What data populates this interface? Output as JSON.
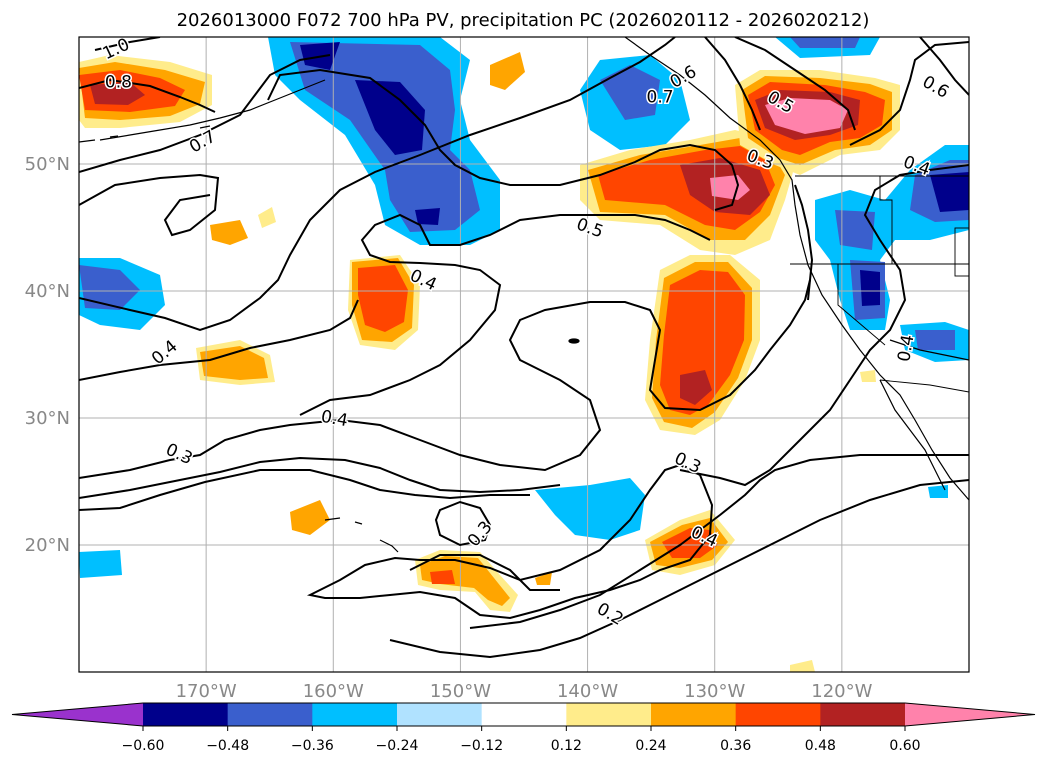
{
  "title": "2026013000 F072 700 hPa PV, precipitation PC (2026020112 - 2026020212)",
  "map": {
    "lon_range": [
      -180,
      -110
    ],
    "lat_range": [
      10,
      60
    ],
    "lon_ticks": [
      {
        "lon": -170,
        "label": "170°W"
      },
      {
        "lon": -160,
        "label": "160°W"
      },
      {
        "lon": -150,
        "label": "150°W"
      },
      {
        "lon": -140,
        "label": "140°W"
      },
      {
        "lon": -130,
        "label": "130°W"
      },
      {
        "lon": -120,
        "label": "120°W"
      }
    ],
    "lat_ticks": [
      {
        "lat": 20,
        "label": "20°N"
      },
      {
        "lat": 30,
        "label": "30°N"
      },
      {
        "lat": 40,
        "label": "40°N"
      },
      {
        "lat": 50,
        "label": "50°N"
      }
    ],
    "grid": true
  },
  "colorbar": {
    "colors": [
      "#9a32cd",
      "#00008b",
      "#3a5fcd",
      "#00bfff",
      "#b0e2ff",
      "#ffffff",
      "#ffec8b",
      "#ffa500",
      "#ff4500",
      "#b22222",
      "#ff82ab"
    ],
    "labels": [
      "−0.60",
      "−0.48",
      "−0.36",
      "−0.24",
      "−0.12",
      "0.12",
      "0.24",
      "0.36",
      "0.48",
      "0.60"
    ],
    "extend": "both"
  },
  "contour_labels": [
    {
      "text": "1.0",
      "lon": -177.1,
      "lat": 59.1,
      "rot": -25
    },
    {
      "text": "0.8",
      "lon": -176.9,
      "lat": 56.5,
      "rot": 0
    },
    {
      "text": "0.7",
      "lon": -170.3,
      "lat": 51.8,
      "rot": -30
    },
    {
      "text": "0.7",
      "lon": -134.3,
      "lat": 55.3,
      "rot": 0
    },
    {
      "text": "0.6",
      "lon": -132.5,
      "lat": 56.9,
      "rot": -30
    },
    {
      "text": "0.6",
      "lon": -112.6,
      "lat": 56.1,
      "rot": 30
    },
    {
      "text": "0.5",
      "lon": -124.8,
      "lat": 54.9,
      "rot": 30
    },
    {
      "text": "0.5",
      "lon": -139.8,
      "lat": 45.0,
      "rot": 20
    },
    {
      "text": "0.4",
      "lon": -114.1,
      "lat": 49.9,
      "rot": 20
    },
    {
      "text": "0.4",
      "lon": -152.9,
      "lat": 40.9,
      "rot": 25
    },
    {
      "text": "0.4",
      "lon": -173.3,
      "lat": 35.2,
      "rot": -40
    },
    {
      "text": "0.4",
      "lon": -159.9,
      "lat": 30.0,
      "rot": 10
    },
    {
      "text": "0.4",
      "lon": -115.0,
      "lat": 35.5,
      "rot": -80
    },
    {
      "text": "0.4",
      "lon": -130.8,
      "lat": 20.7,
      "rot": 25
    },
    {
      "text": "0.3",
      "lon": -126.4,
      "lat": 50.4,
      "rot": 20
    },
    {
      "text": "0.3",
      "lon": -172.1,
      "lat": 27.2,
      "rot": 25
    },
    {
      "text": "0.3",
      "lon": -132.1,
      "lat": 26.5,
      "rot": 25
    },
    {
      "text": "0.3",
      "lon": -148.5,
      "lat": 20.9,
      "rot": -50
    },
    {
      "text": "0.2",
      "lon": -138.2,
      "lat": 14.6,
      "rot": 30
    }
  ]
}
